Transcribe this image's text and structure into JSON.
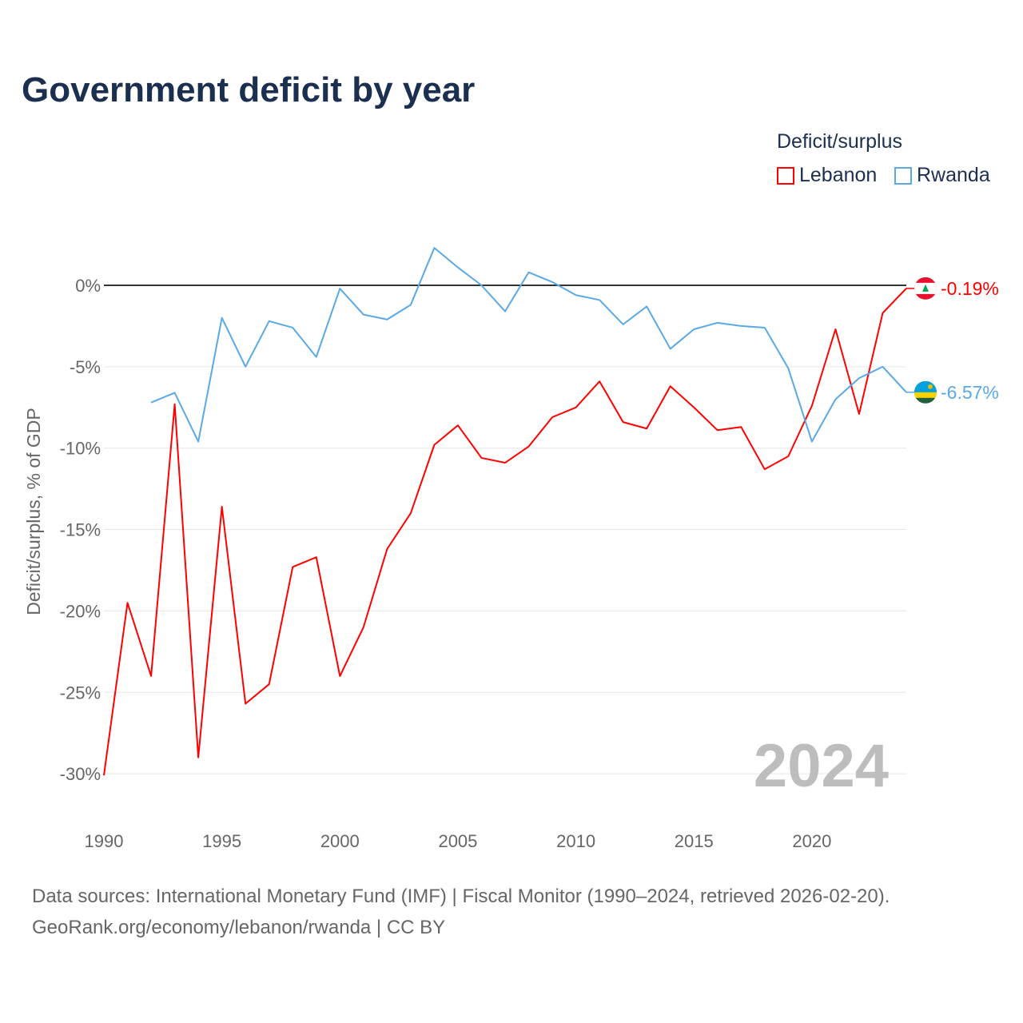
{
  "chart_data": {
    "type": "line",
    "title": "Government deficit by year",
    "ylabel": "Deficit/surplus, % of GDP",
    "xlabel": "",
    "ylim": [
      -30,
      2.5
    ],
    "xlim": [
      1990,
      2024
    ],
    "yticks": [
      0,
      -5,
      -10,
      -15,
      -20,
      -25,
      -30
    ],
    "ytick_labels": [
      "0%",
      "-5%",
      "-10%",
      "-15%",
      "-20%",
      "-25%",
      "-30%"
    ],
    "xticks": [
      1990,
      1995,
      2000,
      2005,
      2010,
      2015,
      2020
    ],
    "xtick_labels": [
      "1990",
      "1995",
      "2000",
      "2005",
      "2010",
      "2015",
      "2020"
    ],
    "grid": true,
    "legend_title": "Deficit/surplus",
    "legend_position": "top-right",
    "watermark_year": "2024",
    "series": [
      {
        "name": "Lebanon",
        "color": "#ff0000",
        "end_label": "-0.19%",
        "x": [
          1990,
          1991,
          1992,
          1993,
          1994,
          1995,
          1996,
          1997,
          1998,
          1999,
          2000,
          2001,
          2002,
          2003,
          2004,
          2005,
          2006,
          2007,
          2008,
          2009,
          2010,
          2011,
          2012,
          2013,
          2014,
          2015,
          2016,
          2017,
          2018,
          2019,
          2020,
          2021,
          2022,
          2023,
          2024
        ],
        "values": [
          -30.1,
          -19.5,
          -24.0,
          -7.3,
          -29.0,
          -13.6,
          -25.7,
          -24.5,
          -17.3,
          -16.7,
          -24.0,
          -21.0,
          -16.2,
          -14.0,
          -9.8,
          -8.6,
          -10.6,
          -10.9,
          -9.9,
          -8.1,
          -7.5,
          -5.9,
          -8.4,
          -8.8,
          -6.2,
          -7.5,
          -8.9,
          -8.7,
          -11.3,
          -10.5,
          -7.4,
          -2.7,
          -7.9,
          -1.7,
          -0.19
        ]
      },
      {
        "name": "Rwanda",
        "color": "#5aa9e6",
        "end_label": "-6.57%",
        "x": [
          1992,
          1993,
          1994,
          1995,
          1996,
          1997,
          1998,
          1999,
          2000,
          2001,
          2002,
          2003,
          2004,
          2005,
          2006,
          2007,
          2008,
          2009,
          2010,
          2011,
          2012,
          2013,
          2014,
          2015,
          2016,
          2017,
          2018,
          2019,
          2020,
          2021,
          2022,
          2023,
          2024
        ],
        "values": [
          -7.2,
          -6.6,
          -9.6,
          -2.0,
          -5.0,
          -2.2,
          -2.6,
          -4.4,
          -0.2,
          -1.8,
          -2.1,
          -1.2,
          2.3,
          1.1,
          0.0,
          -1.6,
          0.8,
          0.2,
          -0.6,
          -0.9,
          -2.4,
          -1.3,
          -3.9,
          -2.7,
          -2.3,
          -2.5,
          -2.6,
          -5.1,
          -9.6,
          -7.0,
          -5.7,
          -5.0,
          -6.57
        ]
      }
    ]
  },
  "footer": {
    "sources": "Data sources: International Monetary Fund (IMF) | Fiscal Monitor (1990–2024, retrieved 2026-02-20).",
    "credit": "GeoRank.org/economy/lebanon/rwanda | CC BY"
  }
}
